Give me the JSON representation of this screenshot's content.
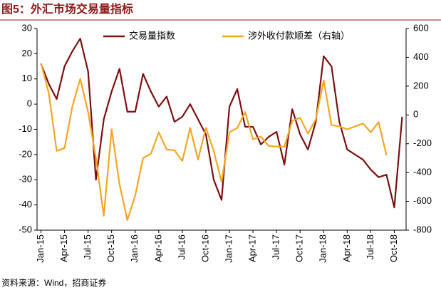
{
  "chart_data": {
    "type": "line",
    "title": "图5：外汇市场交易量指标",
    "source": "资料来源：Wind，招商证券",
    "categories": [
      "Jan-15",
      null,
      null,
      "Apr-15",
      null,
      null,
      "Jul-15",
      null,
      null,
      "Oct-15",
      null,
      null,
      "Jan-16",
      null,
      null,
      "Apr-16",
      null,
      null,
      "Jul-16",
      null,
      null,
      "Oct-16",
      null,
      null,
      "Jan-17",
      null,
      null,
      "Apr-17",
      null,
      null,
      "Jul-17",
      null,
      null,
      "Oct-17",
      null,
      null,
      "Jan-18",
      null,
      null,
      "Apr-18",
      null,
      null,
      "Jul-18",
      null,
      null,
      "Oct-18",
      null
    ],
    "series": [
      {
        "name": "交易量指数",
        "color": "#7b1010",
        "values": [
          16,
          8,
          2,
          15,
          21,
          26,
          13,
          -30,
          -6,
          5,
          14,
          -3,
          -3,
          12,
          5,
          -1,
          3,
          -7,
          -5,
          0,
          -6,
          -12,
          -30,
          -38,
          -1,
          6,
          -9,
          -9,
          -16,
          -13,
          -11,
          -24,
          -2,
          -12,
          -18,
          -7,
          19,
          15,
          -7,
          -18,
          -20,
          -22,
          -26,
          -29,
          -28,
          -41,
          -5
        ]
      },
      {
        "name": "涉外收付款顺差（右轴）",
        "color": "#f5a623",
        "axis": "y2",
        "values": [
          360,
          150,
          -250,
          -230,
          60,
          250,
          20,
          -300,
          -700,
          -100,
          -480,
          -730,
          -560,
          -300,
          -270,
          -120,
          -240,
          -245,
          -320,
          -90,
          -310,
          -90,
          -250,
          -465,
          -120,
          -90,
          20,
          -170,
          -150,
          -215,
          -220,
          -220,
          -40,
          -20,
          -130,
          -30,
          240,
          -70,
          -80,
          -100,
          -80,
          -60,
          -120,
          -50,
          -280,
          null,
          null
        ]
      }
    ],
    "ylim": [
      -50,
      30
    ],
    "yticks": [
      -50,
      -40,
      -30,
      -20,
      -10,
      0,
      10,
      20,
      30
    ],
    "y2lim": [
      -800,
      600
    ],
    "y2ticks": [
      -800,
      -600,
      -400,
      -200,
      0,
      200,
      400,
      600
    ],
    "legend": "top",
    "grid": false
  }
}
